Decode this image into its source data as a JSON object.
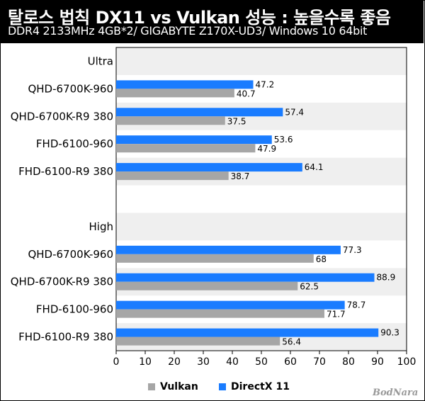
{
  "header": {
    "title": "탈로스 법칙 DX11 vs Vulkan 성능 : 높을수록 좋음",
    "subtitle": "DDR4 2133MHz 4GB*2/ GIGABYTE Z170X-UD3/ Windows 10 64bit"
  },
  "watermark": "BodNara",
  "chart_data": {
    "type": "bar",
    "orientation": "horizontal",
    "xlim": [
      0,
      100
    ],
    "xticks": [
      0,
      10,
      20,
      30,
      40,
      50,
      60,
      70,
      80,
      90,
      100
    ],
    "grid": false,
    "legend_position": "bottom",
    "categories": [
      "Ultra",
      "QHD-6700K-960",
      "QHD-6700K-R9 380",
      "FHD-6100-960",
      "FHD-6100-R9 380",
      "",
      "High",
      "QHD-6700K-960",
      "QHD-6700K-R9 380",
      "FHD-6100-960",
      "FHD-6100-R9 380"
    ],
    "series": [
      {
        "name": "Vulkan",
        "color": "#a6a6a6",
        "values": [
          null,
          40.7,
          37.5,
          47.9,
          38.7,
          null,
          null,
          68,
          62.5,
          71.7,
          56.4
        ],
        "labels": [
          "",
          "40.7",
          "37.5",
          "47.9",
          "38.7",
          "",
          "",
          "68",
          "62.5",
          "71.7",
          "56.4"
        ]
      },
      {
        "name": "DirectX 11",
        "color": "#1a7cff",
        "values": [
          null,
          47.2,
          57.4,
          53.6,
          64.1,
          null,
          null,
          77.3,
          88.9,
          78.7,
          90.3
        ],
        "labels": [
          "",
          "47.2",
          "57.4",
          "53.6",
          "64.1",
          "",
          "",
          "77.3",
          "88.9",
          "78.7",
          "90.3"
        ]
      }
    ]
  }
}
